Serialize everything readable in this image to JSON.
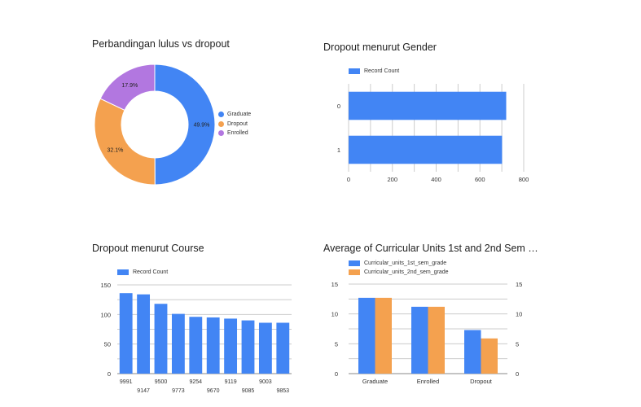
{
  "colors": {
    "blue": "#4285f4",
    "orange": "#f4a14f",
    "purple": "#b277e0",
    "grid": "#cccccc",
    "axis": "#888888"
  },
  "chart_data": [
    {
      "type": "pie",
      "donut": true,
      "title": "Perbandingan lulus vs dropout",
      "labels": [
        "Graduate",
        "Dropout",
        "Enrolled"
      ],
      "values": [
        49.9,
        32.1,
        17.9
      ],
      "value_labels": [
        "49.9%",
        "32.1%",
        "17.9%"
      ],
      "colors": [
        "#4285f4",
        "#f4a14f",
        "#b277e0"
      ],
      "legend": "right"
    },
    {
      "type": "bar",
      "orientation": "horizontal",
      "title": "Dropout menurut Gender",
      "categories": [
        "0",
        "1"
      ],
      "series": [
        {
          "name": "Record Count",
          "values": [
            720,
            701
          ]
        }
      ],
      "xlim": [
        0,
        800
      ],
      "xticks": [
        "0",
        "200",
        "400",
        "600",
        "800"
      ],
      "grid": true,
      "legend": "top-left"
    },
    {
      "type": "bar",
      "title": "Dropout menurut Course",
      "categories": [
        "9991",
        "9147",
        "9500",
        "9773",
        "9254",
        "9670",
        "9119",
        "9085",
        "9003",
        "9853"
      ],
      "series": [
        {
          "name": "Record Count",
          "values": [
            136,
            134,
            118,
            101,
            96,
            95,
            93,
            90,
            86,
            86
          ]
        }
      ],
      "ylim": [
        0,
        150
      ],
      "yticks": [
        "0",
        "50",
        "100",
        "150"
      ],
      "grid": true,
      "legend": "top-left"
    },
    {
      "type": "bar",
      "title": "Average of Curricular Units 1st and 2nd Sem …",
      "categories": [
        "Graduate",
        "Enrolled",
        "Dropout"
      ],
      "series": [
        {
          "name": "Curricular_units_1st_sem_grade",
          "values": [
            12.7,
            11.2,
            7.3
          ]
        },
        {
          "name": "Curricular_units_2nd_sem_grade",
          "values": [
            12.7,
            11.2,
            5.9
          ]
        }
      ],
      "ylim": [
        0,
        15
      ],
      "yticks": [
        "0",
        "5",
        "10",
        "15"
      ],
      "grid": true,
      "legend": "top-left"
    }
  ]
}
